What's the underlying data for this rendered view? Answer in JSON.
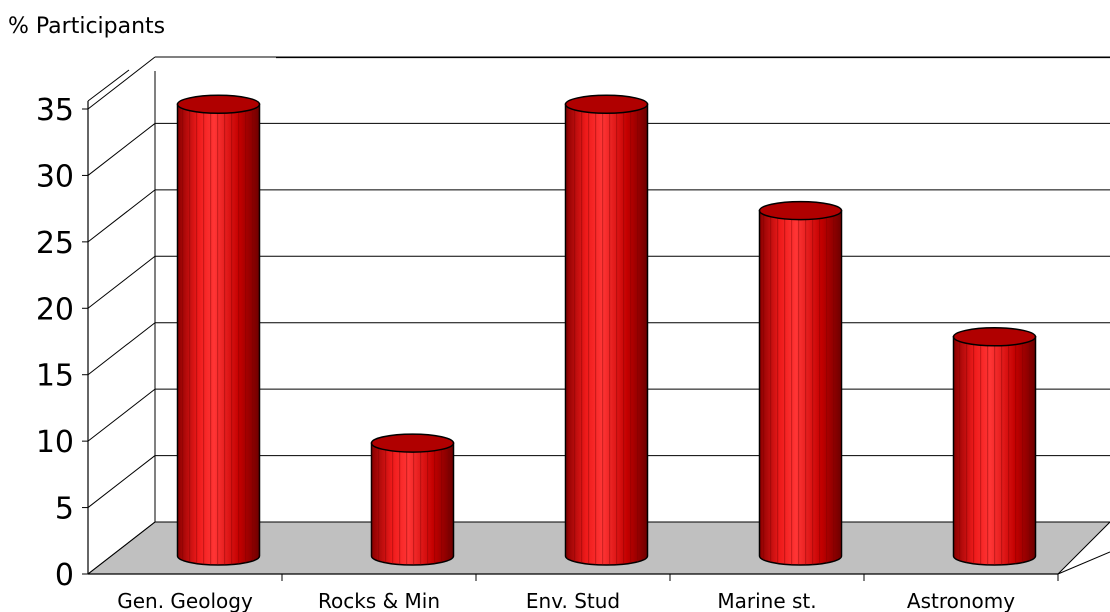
{
  "chart_data": {
    "type": "bar",
    "style": "3d-cylinder",
    "ylabel": "% Participants",
    "categories": [
      "Gen. Geology",
      "Rocks & Min",
      "Env. Stud",
      "Marine st.",
      "Astronomy"
    ],
    "series": [
      {
        "values": [
          34,
          8.5,
          34,
          26,
          16.5
        ]
      }
    ],
    "ylim": [
      0,
      35
    ],
    "yticks": [
      "0",
      "5",
      "10",
      "15",
      "20",
      "25",
      "30",
      "35"
    ],
    "grid": true,
    "legend": "none",
    "colors": {
      "bar": "#cc0000",
      "bar_dark": "#7a0000",
      "bar_light": "#ff3a3a",
      "floor": "#c0c0c0",
      "grid": "#000000"
    }
  }
}
